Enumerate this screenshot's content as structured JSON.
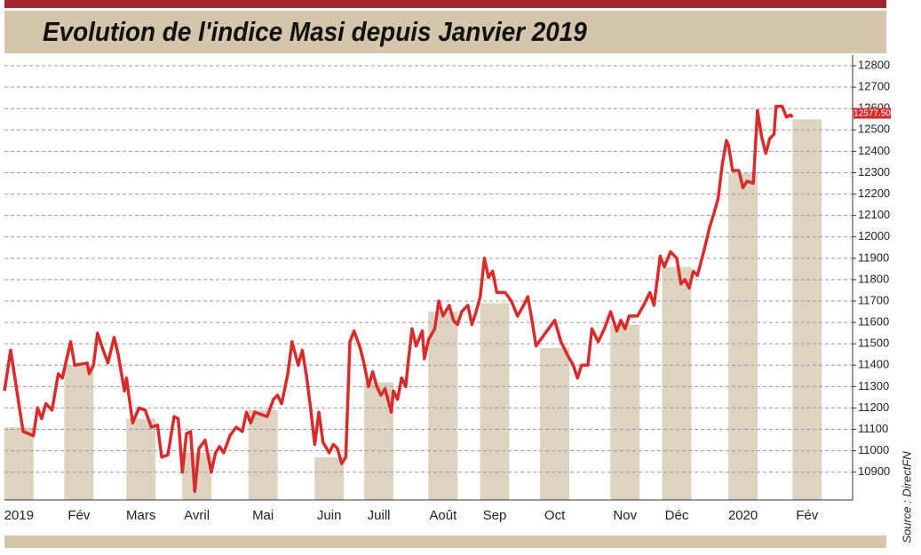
{
  "chart_data": {
    "type": "line",
    "title": "Evolution de l'indice Masi depuis Janvier 2019",
    "source": "Source : DirectFN",
    "xlim": [
      0,
      410
    ],
    "ylim": [
      10770,
      12850
    ],
    "yticks": [
      10900,
      11000,
      11100,
      11200,
      11300,
      11400,
      11500,
      11600,
      11700,
      11800,
      11900,
      12000,
      12100,
      12200,
      12300,
      12400,
      12500,
      12600,
      12700,
      12800
    ],
    "xticks": [
      {
        "value": 7,
        "label": "2019"
      },
      {
        "value": 36,
        "label": "Fév"
      },
      {
        "value": 66,
        "label": "Mars"
      },
      {
        "value": 93,
        "label": "Avril"
      },
      {
        "value": 125,
        "label": "Mai"
      },
      {
        "value": 157,
        "label": "Juin"
      },
      {
        "value": 181,
        "label": "Juill"
      },
      {
        "value": 212,
        "label": "Août"
      },
      {
        "value": 237,
        "label": "Sep"
      },
      {
        "value": 266,
        "label": "Oct"
      },
      {
        "value": 300,
        "label": "Nov"
      },
      {
        "value": 325,
        "label": "Déc"
      },
      {
        "value": 357,
        "label": "2020"
      },
      {
        "value": 388,
        "label": "Fév"
      }
    ],
    "grid": true,
    "bars": {
      "color": "#ddd3c1",
      "values": [
        11110,
        11400,
        11150,
        10990,
        11190,
        10970,
        11320,
        11650,
        11690,
        11480,
        11590,
        11860,
        12300,
        12550
      ]
    },
    "last_value": {
      "value": 12577.5,
      "label": "12577.50"
    },
    "series": [
      {
        "color": "#d92b2b",
        "x": [
          0,
          3,
          6,
          9,
          14,
          16,
          18,
          20,
          23,
          26,
          28,
          32,
          34,
          40,
          41,
          43,
          45,
          47,
          50,
          53,
          55,
          58,
          59,
          62,
          65,
          68,
          71,
          74,
          76,
          79,
          82,
          84,
          86,
          88,
          90,
          92,
          94,
          97,
          100,
          102,
          104,
          106,
          109,
          112,
          115,
          117,
          119,
          121,
          127,
          130,
          132,
          134,
          137,
          139,
          142,
          144,
          146,
          148,
          150,
          152,
          154,
          157,
          159,
          161,
          163,
          165,
          167,
          169,
          172,
          174,
          176,
          178,
          180,
          182,
          184,
          187,
          188,
          190,
          192,
          194,
          195,
          197,
          199,
          202,
          203,
          205,
          208,
          210,
          212,
          215,
          217,
          219,
          221,
          224,
          226,
          228,
          230,
          232,
          234,
          236,
          238,
          242,
          245,
          248,
          251,
          253,
          255,
          257,
          260,
          263,
          266,
          269,
          272,
          275,
          277,
          279,
          282,
          284,
          287,
          290,
          293,
          296,
          298,
          300,
          302,
          306,
          309,
          312,
          314,
          317,
          319,
          322,
          325,
          327,
          329,
          331,
          333,
          335,
          338,
          340,
          341,
          343,
          345,
          347,
          349,
          350,
          352,
          355,
          357,
          359,
          362,
          364,
          366,
          368,
          370,
          372,
          373,
          376,
          378,
          380,
          381
        ],
        "values": [
          11280,
          11470,
          11280,
          11090,
          11070,
          11200,
          11150,
          11220,
          11190,
          11360,
          11340,
          11510,
          11400,
          11410,
          11360,
          11400,
          11550,
          11490,
          11410,
          11530,
          11450,
          11280,
          11340,
          11130,
          11200,
          11190,
          11110,
          11120,
          10970,
          10980,
          11160,
          11150,
          10900,
          11080,
          11090,
          10810,
          11010,
          11050,
          10900,
          10990,
          11020,
          10990,
          11070,
          11110,
          11090,
          11180,
          11130,
          11180,
          11160,
          11240,
          11260,
          11220,
          11360,
          11510,
          11400,
          11470,
          11350,
          11200,
          11030,
          11180,
          11040,
          10990,
          11030,
          11010,
          10940,
          10970,
          11510,
          11560,
          11480,
          11400,
          11300,
          11370,
          11300,
          11260,
          11290,
          11180,
          11280,
          11240,
          11340,
          11300,
          11400,
          11570,
          11490,
          11560,
          11430,
          11520,
          11570,
          11700,
          11630,
          11680,
          11610,
          11590,
          11650,
          11680,
          11590,
          11650,
          11720,
          11900,
          11810,
          11840,
          11740,
          11740,
          11700,
          11630,
          11680,
          11720,
          11610,
          11490,
          11530,
          11570,
          11610,
          11510,
          11450,
          11400,
          11340,
          11400,
          11400,
          11570,
          11510,
          11570,
          11650,
          11560,
          11610,
          11570,
          11630,
          11630,
          11680,
          11740,
          11680,
          11910,
          11860,
          11930,
          11900,
          11780,
          11800,
          11760,
          11840,
          11820,
          11930,
          12010,
          12050,
          12110,
          12180,
          12340,
          12450,
          12430,
          12310,
          12310,
          12230,
          12260,
          12250,
          12590,
          12470,
          12390,
          12460,
          12480,
          12610,
          12610,
          12560,
          12570,
          12560
        ]
      }
    ]
  }
}
